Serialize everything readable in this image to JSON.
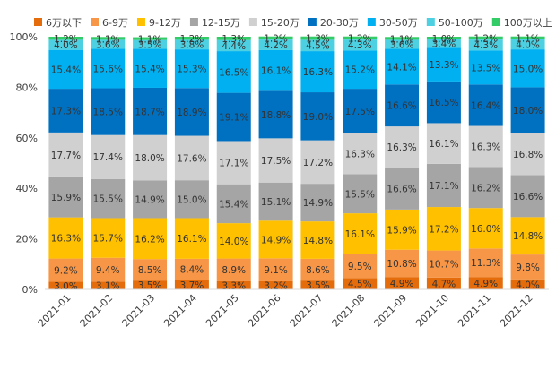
{
  "chart_data": {
    "type": "bar",
    "stacked": true,
    "percent": true,
    "title": "",
    "xlabel": "",
    "ylabel": "",
    "ylim": [
      0,
      100
    ],
    "y_ticks": [
      "0%",
      "20%",
      "40%",
      "60%",
      "80%",
      "100%"
    ],
    "legend_position": "top",
    "categories": [
      "2021-01",
      "2021-02",
      "2021-03",
      "2021-04",
      "2021-05",
      "2021-06",
      "2021-07",
      "2021-08",
      "2021-09",
      "2021-10",
      "2021-11",
      "2021-12"
    ],
    "series": [
      {
        "name": "6万以下",
        "color": "#e46c0a",
        "values": [
          3.0,
          3.1,
          3.5,
          3.7,
          3.3,
          3.2,
          3.5,
          4.5,
          4.9,
          4.7,
          4.9,
          4.0
        ]
      },
      {
        "name": "6-9万",
        "color": "#f79646",
        "values": [
          9.2,
          9.4,
          8.5,
          8.4,
          8.9,
          9.1,
          8.6,
          9.5,
          10.8,
          10.7,
          11.3,
          9.8
        ]
      },
      {
        "name": "9-12万",
        "color": "#ffc000",
        "values": [
          16.3,
          15.7,
          16.2,
          16.1,
          14.0,
          14.9,
          14.8,
          16.1,
          15.9,
          17.2,
          16.0,
          14.8
        ]
      },
      {
        "name": "12-15万",
        "color": "#a5a5a5",
        "values": [
          15.9,
          15.5,
          14.9,
          15.0,
          15.4,
          15.1,
          14.9,
          15.5,
          16.6,
          17.1,
          16.2,
          16.6
        ]
      },
      {
        "name": "15-20万",
        "color": "#d0d0d0",
        "values": [
          17.7,
          17.4,
          18.0,
          17.6,
          17.1,
          17.5,
          17.2,
          16.3,
          16.3,
          16.1,
          16.3,
          16.8
        ]
      },
      {
        "name": "20-30万",
        "color": "#0070c0",
        "values": [
          17.3,
          18.5,
          18.7,
          18.9,
          19.1,
          18.8,
          19.0,
          17.5,
          16.6,
          16.5,
          16.4,
          18.0
        ]
      },
      {
        "name": "30-50万",
        "color": "#00b0f0",
        "values": [
          15.4,
          15.6,
          15.4,
          15.3,
          16.5,
          16.1,
          16.3,
          15.2,
          14.1,
          13.3,
          13.5,
          15.0
        ]
      },
      {
        "name": "50-100万",
        "color": "#4dd0e1",
        "values": [
          4.0,
          3.6,
          3.5,
          3.8,
          4.4,
          4.2,
          4.5,
          4.3,
          3.6,
          3.4,
          4.3,
          4.0
        ]
      },
      {
        "name": "100万以上",
        "color": "#33cc66",
        "values": [
          1.2,
          1.1,
          1.1,
          1.2,
          1.3,
          1.2,
          1.3,
          1.2,
          1.1,
          1.0,
          1.2,
          1.1
        ]
      }
    ]
  }
}
